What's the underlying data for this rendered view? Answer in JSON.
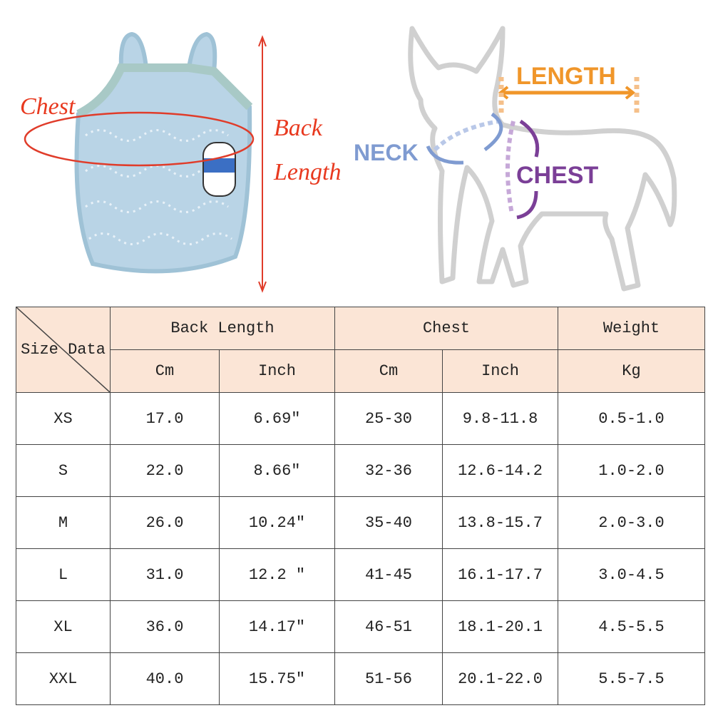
{
  "labels": {
    "chest": "Chest",
    "back": "Back",
    "length": "Length"
  },
  "diagram": {
    "length": "LENGTH",
    "neck": "NECK",
    "chest": "CHEST"
  },
  "table": {
    "corner": "Size Data",
    "groups": [
      "Back Length",
      "Chest",
      "Weight"
    ],
    "units": [
      "Cm",
      "Inch",
      "Cm",
      "Inch",
      "Kg"
    ],
    "rows": [
      [
        "XS",
        "17.0",
        "6.69″",
        "25-30",
        "9.8-11.8",
        "0.5-1.0"
      ],
      [
        "S",
        "22.0",
        "8.66″",
        "32-36",
        "12.6-14.2",
        "1.0-2.0"
      ],
      [
        "M",
        "26.0",
        "10.24″",
        "35-40",
        "13.8-15.7",
        "2.0-3.0"
      ],
      [
        "L",
        "31.0",
        "12.2 ″",
        "41-45",
        "16.1-17.7",
        "3.0-4.5"
      ],
      [
        "XL",
        "36.0",
        "14.17″",
        "46-51",
        "18.1-20.1",
        "4.5-5.5"
      ],
      [
        "XXL",
        "40.0",
        "15.75″",
        "51-56",
        "20.1-22.0",
        "5.5-7.5"
      ]
    ]
  }
}
